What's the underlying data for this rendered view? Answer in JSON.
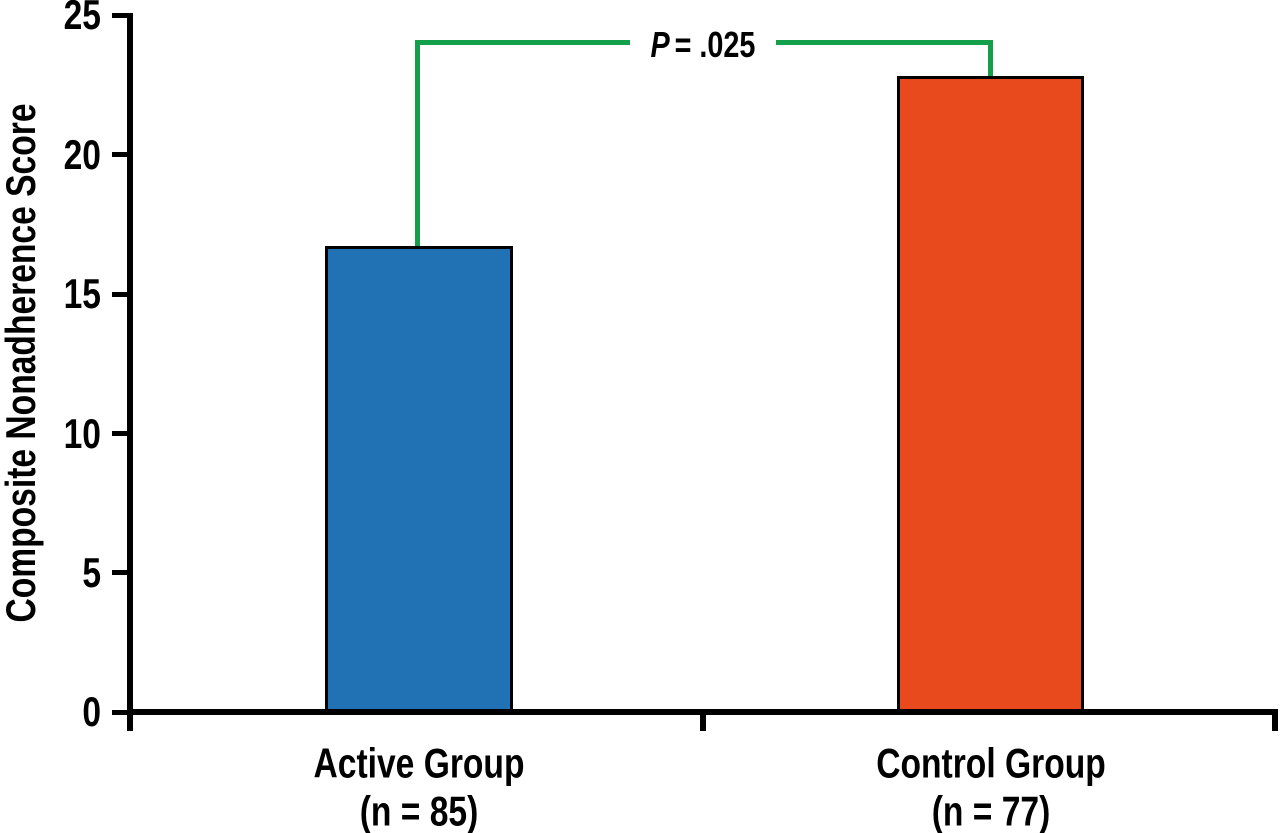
{
  "figure": {
    "background": "#FFFFFF",
    "axis_color": "#000000",
    "text_color": "#000000"
  },
  "chart_data": {
    "type": "bar",
    "title": "",
    "xlabel": "",
    "ylabel": "Composite Nonadherence Score",
    "ylim": [
      0,
      25
    ],
    "yticks": [
      0,
      5,
      10,
      15,
      20,
      25
    ],
    "grid": false,
    "legend": "none",
    "categories": [
      "Active Group",
      "Control Group"
    ],
    "category_sublabels": [
      "(n = 85)",
      "(n = 77)"
    ],
    "values": [
      16.7,
      22.8
    ],
    "series": [
      {
        "name": "Composite Nonadherence Score",
        "values": [
          16.7,
          22.8
        ]
      }
    ],
    "bar_colors": [
      "#2171B5",
      "#E8491D"
    ],
    "bar_border_color": "#000000",
    "annotation": {
      "type": "significance-bracket",
      "text": "P = .025",
      "p_symbol": "P",
      "p_rest": "= .025",
      "color": "#14A04B",
      "connects": [
        "Active Group",
        "Control Group"
      ],
      "bracket_top_value": 24
    }
  }
}
